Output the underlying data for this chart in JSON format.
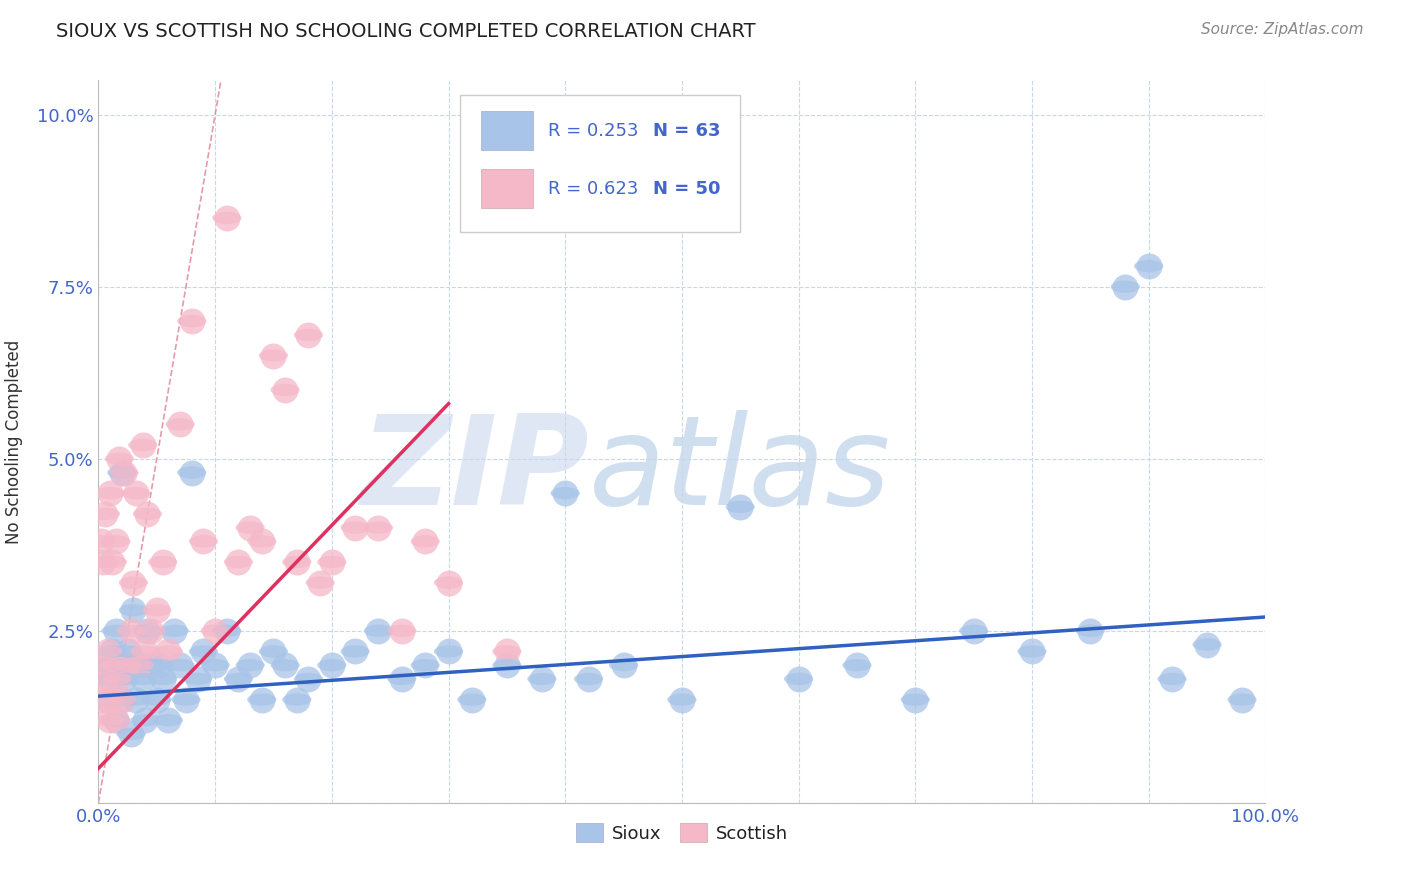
{
  "title": "SIOUX VS SCOTTISH NO SCHOOLING COMPLETED CORRELATION CHART",
  "source": "Source: ZipAtlas.com",
  "ylabel": "No Schooling Completed",
  "xlim": [
    0,
    100
  ],
  "ylim": [
    0,
    10.5
  ],
  "yticks": [
    0,
    2.5,
    5.0,
    7.5,
    10.0
  ],
  "xticks": [
    0,
    10,
    20,
    30,
    40,
    50,
    60,
    70,
    80,
    90,
    100
  ],
  "ytick_labels": [
    "",
    "2.5%",
    "5.0%",
    "7.5%",
    "10.0%"
  ],
  "sioux_color": "#a8c4e8",
  "scottish_color": "#f5b8c8",
  "sioux_line_color": "#3060c0",
  "scottish_line_color": "#e03060",
  "ref_line_color": "#e08090",
  "legend_r_sioux": "R = 0.253",
  "legend_n_sioux": "N = 63",
  "legend_r_scottish": "R = 0.623",
  "legend_n_scottish": "N = 50",
  "text_color_blue": "#4466cc",
  "background_color": "#ffffff",
  "grid_color": "#c8d8ec",
  "watermark_zip": "ZIP",
  "watermark_atlas": "atlas",
  "sioux_x": [
    0.5,
    0.8,
    1.0,
    1.2,
    1.5,
    1.5,
    1.8,
    2.0,
    2.0,
    2.2,
    2.5,
    2.8,
    3.0,
    3.2,
    3.5,
    3.8,
    4.0,
    4.2,
    4.5,
    5.0,
    5.2,
    5.5,
    6.0,
    6.5,
    7.0,
    7.5,
    8.0,
    8.5,
    9.0,
    10.0,
    11.0,
    12.0,
    13.0,
    14.0,
    15.0,
    16.0,
    17.0,
    18.0,
    20.0,
    22.0,
    24.0,
    26.0,
    28.0,
    30.0,
    32.0,
    35.0,
    38.0,
    40.0,
    42.0,
    45.0,
    50.0,
    55.0,
    60.0,
    65.0,
    70.0,
    75.0,
    80.0,
    85.0,
    88.0,
    90.0,
    92.0,
    95.0,
    98.0
  ],
  "sioux_y": [
    2.0,
    1.5,
    1.8,
    2.2,
    2.5,
    1.2,
    2.0,
    1.5,
    4.8,
    1.8,
    2.2,
    1.0,
    2.8,
    1.5,
    2.0,
    1.8,
    1.2,
    2.5,
    2.0,
    1.5,
    2.0,
    1.8,
    1.2,
    2.5,
    2.0,
    1.5,
    4.8,
    1.8,
    2.2,
    2.0,
    2.5,
    1.8,
    2.0,
    1.5,
    2.2,
    2.0,
    1.5,
    1.8,
    2.0,
    2.2,
    2.5,
    1.8,
    2.0,
    2.2,
    1.5,
    2.0,
    1.8,
    4.5,
    1.8,
    2.0,
    1.5,
    4.3,
    1.8,
    2.0,
    1.5,
    2.5,
    2.2,
    2.5,
    7.5,
    7.8,
    1.8,
    2.3,
    1.5
  ],
  "scottish_x": [
    0.2,
    0.3,
    0.4,
    0.5,
    0.6,
    0.7,
    0.8,
    0.9,
    1.0,
    1.0,
    1.2,
    1.3,
    1.5,
    1.5,
    1.6,
    1.8,
    2.0,
    2.2,
    2.5,
    2.8,
    3.0,
    3.2,
    3.5,
    3.8,
    4.0,
    4.2,
    4.5,
    5.0,
    5.5,
    6.0,
    7.0,
    8.0,
    9.0,
    10.0,
    11.0,
    12.0,
    13.0,
    14.0,
    15.0,
    16.0,
    17.0,
    18.0,
    19.0,
    20.0,
    22.0,
    24.0,
    26.0,
    28.0,
    30.0,
    35.0
  ],
  "scottish_y": [
    3.8,
    2.0,
    3.5,
    1.5,
    4.2,
    1.8,
    2.2,
    1.2,
    1.5,
    4.5,
    3.5,
    2.0,
    3.8,
    1.2,
    1.8,
    5.0,
    1.5,
    4.8,
    2.0,
    2.5,
    3.2,
    4.5,
    2.0,
    5.2,
    2.2,
    4.2,
    2.5,
    2.8,
    3.5,
    2.2,
    5.5,
    7.0,
    3.8,
    2.5,
    8.5,
    3.5,
    4.0,
    3.8,
    6.5,
    6.0,
    3.5,
    6.8,
    3.2,
    3.5,
    4.0,
    4.0,
    2.5,
    3.8,
    3.2,
    2.2
  ],
  "sioux_line_x0": 0,
  "sioux_line_y0": 1.55,
  "sioux_line_x1": 100,
  "sioux_line_y1": 2.7,
  "scottish_line_x0": 0,
  "scottish_line_y0": 0.5,
  "scottish_line_x1": 30,
  "scottish_line_y1": 5.8
}
